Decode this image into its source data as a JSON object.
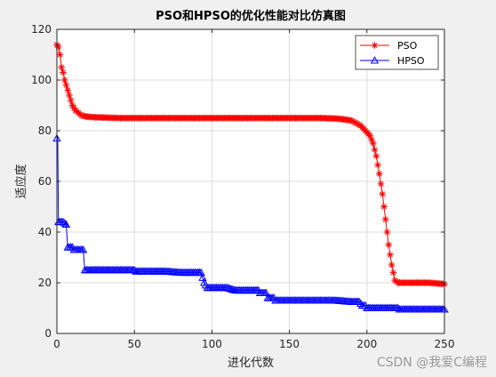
{
  "watermark": "CSDN @我爱C编程",
  "chart_data": {
    "type": "line",
    "title": "PSO和HPSO的优化性能对比仿真图",
    "xlabel": "进化代数",
    "ylabel": "适应度",
    "xlim": [
      0,
      250
    ],
    "ylim": [
      0,
      120
    ],
    "xticks": [
      "0",
      "50",
      "100",
      "150",
      "200",
      "250"
    ],
    "yticks": [
      "0",
      "20",
      "40",
      "60",
      "80",
      "100",
      "120"
    ],
    "grid": true,
    "legend": "top-right",
    "series": [
      {
        "name": "PSO",
        "color": "#ff0000",
        "marker": "asterisk",
        "points": [
          [
            0,
            114
          ],
          [
            1,
            113
          ],
          [
            2,
            110
          ],
          [
            3,
            105
          ],
          [
            4,
            103
          ],
          [
            5,
            100
          ],
          [
            6,
            98
          ],
          [
            7,
            96
          ],
          [
            8,
            94
          ],
          [
            9,
            92
          ],
          [
            10,
            90
          ],
          [
            11,
            89
          ],
          [
            12,
            88
          ],
          [
            13,
            87.5
          ],
          [
            14,
            87
          ],
          [
            15,
            86.5
          ],
          [
            16,
            86
          ],
          [
            18,
            85.7
          ],
          [
            20,
            85.5
          ],
          [
            25,
            85.3
          ],
          [
            30,
            85.2
          ],
          [
            40,
            85
          ],
          [
            60,
            85
          ],
          [
            80,
            85
          ],
          [
            100,
            85
          ],
          [
            120,
            85
          ],
          [
            140,
            85
          ],
          [
            160,
            85
          ],
          [
            170,
            85
          ],
          [
            180,
            84.8
          ],
          [
            185,
            84.5
          ],
          [
            190,
            84
          ],
          [
            193,
            83
          ],
          [
            196,
            82
          ],
          [
            199,
            80
          ],
          [
            202,
            78
          ],
          [
            204,
            75
          ],
          [
            206,
            70
          ],
          [
            208,
            63
          ],
          [
            210,
            55
          ],
          [
            212,
            45
          ],
          [
            214,
            35
          ],
          [
            216,
            27
          ],
          [
            218,
            21
          ],
          [
            220,
            20
          ],
          [
            230,
            20
          ],
          [
            240,
            20
          ],
          [
            250,
            19.5
          ]
        ]
      },
      {
        "name": "HPSO",
        "color": "#0000ff",
        "marker": "triangle",
        "points": [
          [
            0,
            77
          ],
          [
            0.5,
            78
          ],
          [
            1,
            44
          ],
          [
            2,
            44
          ],
          [
            4,
            44
          ],
          [
            6,
            43
          ],
          [
            7,
            34
          ],
          [
            8,
            34
          ],
          [
            10,
            34
          ],
          [
            11,
            33
          ],
          [
            16,
            33
          ],
          [
            17,
            33
          ],
          [
            18,
            25
          ],
          [
            20,
            25
          ],
          [
            25,
            25
          ],
          [
            30,
            25
          ],
          [
            40,
            25
          ],
          [
            50,
            25
          ],
          [
            51,
            24.5
          ],
          [
            60,
            24.5
          ],
          [
            70,
            24.5
          ],
          [
            80,
            24
          ],
          [
            93,
            24
          ],
          [
            94,
            22
          ],
          [
            95,
            20
          ],
          [
            96,
            19
          ],
          [
            97,
            18
          ],
          [
            110,
            18
          ],
          [
            115,
            17
          ],
          [
            130,
            17
          ],
          [
            131,
            16
          ],
          [
            135,
            16
          ],
          [
            136,
            14
          ],
          [
            140,
            14
          ],
          [
            141,
            13
          ],
          [
            150,
            13
          ],
          [
            160,
            13
          ],
          [
            170,
            13
          ],
          [
            180,
            13
          ],
          [
            190,
            12.5
          ],
          [
            195,
            12.5
          ],
          [
            197,
            11
          ],
          [
            199,
            11
          ],
          [
            200,
            10
          ],
          [
            210,
            10
          ],
          [
            220,
            10
          ],
          [
            221,
            9.5
          ],
          [
            230,
            9.5
          ],
          [
            250,
            9.5
          ]
        ]
      }
    ]
  }
}
